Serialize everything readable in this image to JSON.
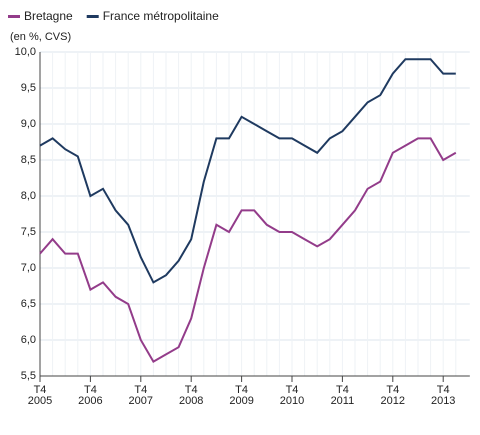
{
  "chart_data": {
    "type": "line",
    "subtitle": "(en %, CVS)",
    "categories": [
      "T4 2005",
      null,
      null,
      null,
      "T4 2006",
      null,
      null,
      null,
      "T4 2007",
      null,
      null,
      null,
      "T4 2008",
      null,
      null,
      null,
      "T4 2009",
      null,
      null,
      null,
      "T4 2010",
      null,
      null,
      null,
      "T4 2011",
      null,
      null,
      null,
      "T4 2012",
      null,
      null,
      null,
      "T4 2013",
      null
    ],
    "series": [
      {
        "name": "Bretagne",
        "color": "#933c8a",
        "values": [
          7.2,
          7.4,
          7.2,
          7.2,
          6.7,
          6.8,
          6.6,
          6.5,
          6.0,
          5.7,
          5.8,
          5.9,
          6.3,
          7.0,
          7.6,
          7.5,
          7.8,
          7.8,
          7.6,
          7.5,
          7.5,
          7.4,
          7.3,
          7.4,
          7.6,
          7.8,
          8.1,
          8.2,
          8.6,
          8.7,
          8.8,
          8.8,
          8.5,
          8.6
        ]
      },
      {
        "name": "France métropolitaine",
        "color": "#1f3a60",
        "values": [
          8.7,
          8.8,
          8.65,
          8.55,
          8.0,
          8.1,
          7.8,
          7.6,
          7.15,
          6.8,
          6.9,
          7.1,
          7.4,
          8.2,
          8.8,
          8.8,
          9.1,
          9.0,
          8.9,
          8.8,
          8.8,
          8.7,
          8.6,
          8.8,
          8.9,
          9.1,
          9.3,
          9.4,
          9.7,
          9.9,
          9.9,
          9.9,
          9.7,
          9.7
        ]
      }
    ],
    "ylim": [
      5.5,
      10.0
    ],
    "yticks": [
      {
        "value": 5.5,
        "label": "5,5"
      },
      {
        "value": 6.0,
        "label": "6,0"
      },
      {
        "value": 6.5,
        "label": "6,5"
      },
      {
        "value": 7.0,
        "label": "7,0"
      },
      {
        "value": 7.5,
        "label": "7,5"
      },
      {
        "value": 8.0,
        "label": "8,0"
      },
      {
        "value": 8.5,
        "label": "8,5"
      },
      {
        "value": 9.0,
        "label": "9,0"
      },
      {
        "value": 9.5,
        "label": "9,5"
      },
      {
        "value": 10.0,
        "label": "10,0"
      }
    ],
    "grid": true
  }
}
